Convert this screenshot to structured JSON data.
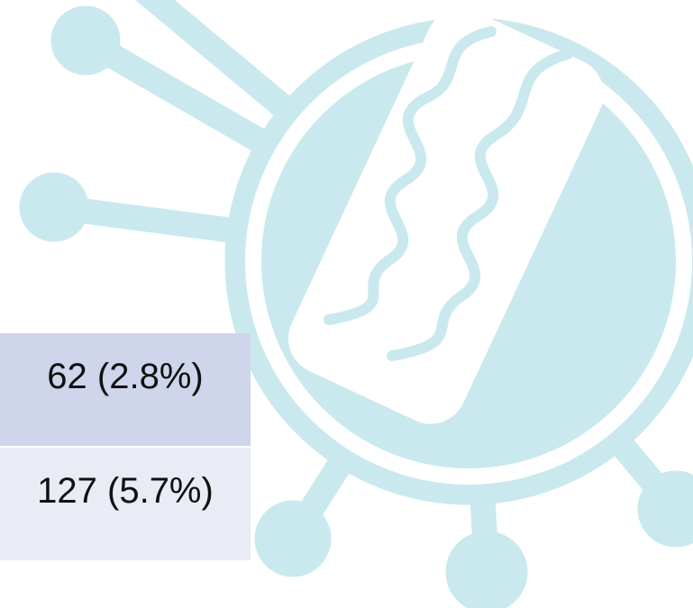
{
  "table": {
    "rows": [
      [
        "62 (2.8%)"
      ],
      [
        "127 (5.7%)"
      ]
    ]
  }
}
